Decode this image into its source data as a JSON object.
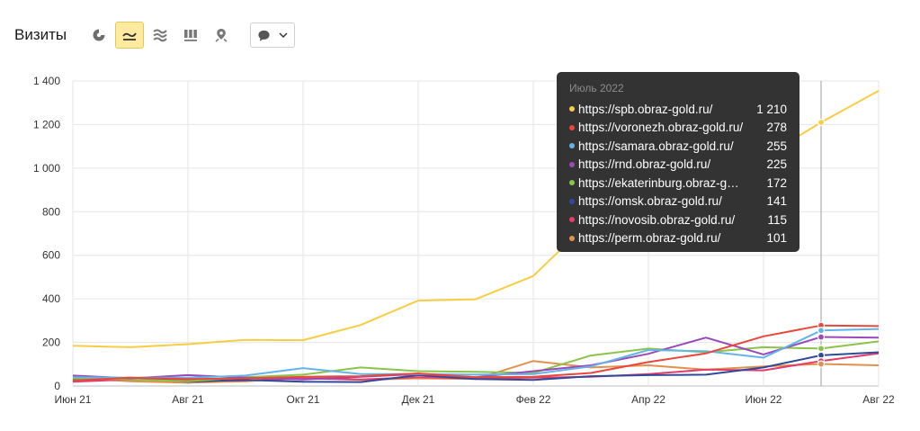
{
  "toolbar": {
    "title": "Визиты",
    "icons": [
      "pie-chart-icon",
      "line-chart-icon",
      "area-chart-icon",
      "bar-chart-icon",
      "map-pin-icon"
    ],
    "active_icon": "line-chart-icon",
    "dropdown_icon": "speech-bubble-icon"
  },
  "tooltip": {
    "title": "Июль 2022",
    "rows": [
      {
        "name": "https://spb.obraz-gold.ru/",
        "value": "1 210",
        "color": "#f7cd44"
      },
      {
        "name": "https://voronezh.obraz-gold.ru/",
        "value": "278",
        "color": "#e8483b"
      },
      {
        "name": "https://samara.obraz-gold.ru/",
        "value": "255",
        "color": "#62b4ea"
      },
      {
        "name": "https://rnd.obraz-gold.ru/",
        "value": "225",
        "color": "#9b48b8"
      },
      {
        "name": "https://ekaterinburg.obraz-gold.ru/",
        "value": "172",
        "color": "#8ac449"
      },
      {
        "name": "https://omsk.obraz-gold.ru/",
        "value": "141",
        "color": "#2d4b9a"
      },
      {
        "name": "https://novosib.obraz-gold.ru/",
        "value": "115",
        "color": "#e33d6b"
      },
      {
        "name": "https://perm.obraz-gold.ru/",
        "value": "101",
        "color": "#e0914f"
      }
    ]
  },
  "chart_data": {
    "type": "line",
    "title": "Визиты",
    "x": [
      "2021-06",
      "2021-07",
      "2021-08",
      "2021-09",
      "2021-10",
      "2021-11",
      "2021-12",
      "2022-01",
      "2022-02",
      "2022-03",
      "2022-04",
      "2022-05",
      "2022-06",
      "2022-07",
      "2022-08"
    ],
    "x_tick_labels": [
      "Июн 21",
      "Авг 21",
      "Окт 21",
      "Дек 21",
      "Фев 22",
      "Апр 22",
      "Июн 22",
      "Авг 22"
    ],
    "y_tick_labels": [
      "0",
      "200",
      "400",
      "600",
      "800",
      "1 000",
      "1 200",
      "1 400"
    ],
    "ylim": [
      0,
      1400
    ],
    "grid": true,
    "highlight_index": 13,
    "series": [
      {
        "name": "https://spb.obraz-gold.ru/",
        "color": "#f7cd44",
        "values": [
          185,
          178,
          192,
          212,
          210,
          280,
          392,
          398,
          505,
          760,
          890,
          980,
          1050,
          1210,
          1355
        ]
      },
      {
        "name": "https://voronezh.obraz-gold.ru/",
        "color": "#e8483b",
        "values": [
          25,
          38,
          32,
          35,
          42,
          45,
          58,
          40,
          42,
          60,
          110,
          150,
          228,
          278,
          275
        ]
      },
      {
        "name": "https://samara.obraz-gold.ru/",
        "color": "#62b4ea",
        "values": [
          40,
          38,
          38,
          48,
          82,
          55,
          55,
          52,
          55,
          90,
          165,
          160,
          130,
          255,
          262
        ]
      },
      {
        "name": "https://rnd.obraz-gold.ru/",
        "color": "#9b48b8",
        "values": [
          48,
          35,
          50,
          38,
          30,
          42,
          55,
          40,
          68,
          95,
          148,
          222,
          145,
          225,
          222
        ]
      },
      {
        "name": "https://ekaterinburg.obraz-gold.ru/",
        "color": "#8ac449",
        "values": [
          35,
          30,
          22,
          40,
          52,
          85,
          68,
          65,
          60,
          140,
          172,
          155,
          178,
          172,
          205
        ]
      },
      {
        "name": "https://omsk.obraz-gold.ru/",
        "color": "#2d4b9a",
        "values": [
          30,
          38,
          20,
          28,
          20,
          18,
          50,
          32,
          28,
          45,
          50,
          52,
          85,
          141,
          155
        ]
      },
      {
        "name": "https://novosib.obraz-gold.ru/",
        "color": "#e33d6b",
        "values": [
          20,
          30,
          28,
          25,
          35,
          30,
          40,
          35,
          38,
          42,
          55,
          75,
          72,
          115,
          150
        ]
      },
      {
        "name": "https://perm.obraz-gold.ru/",
        "color": "#e0914f",
        "values": [
          35,
          22,
          15,
          22,
          38,
          28,
          35,
          32,
          115,
          85,
          95,
          75,
          90,
          101,
          95
        ]
      }
    ]
  }
}
